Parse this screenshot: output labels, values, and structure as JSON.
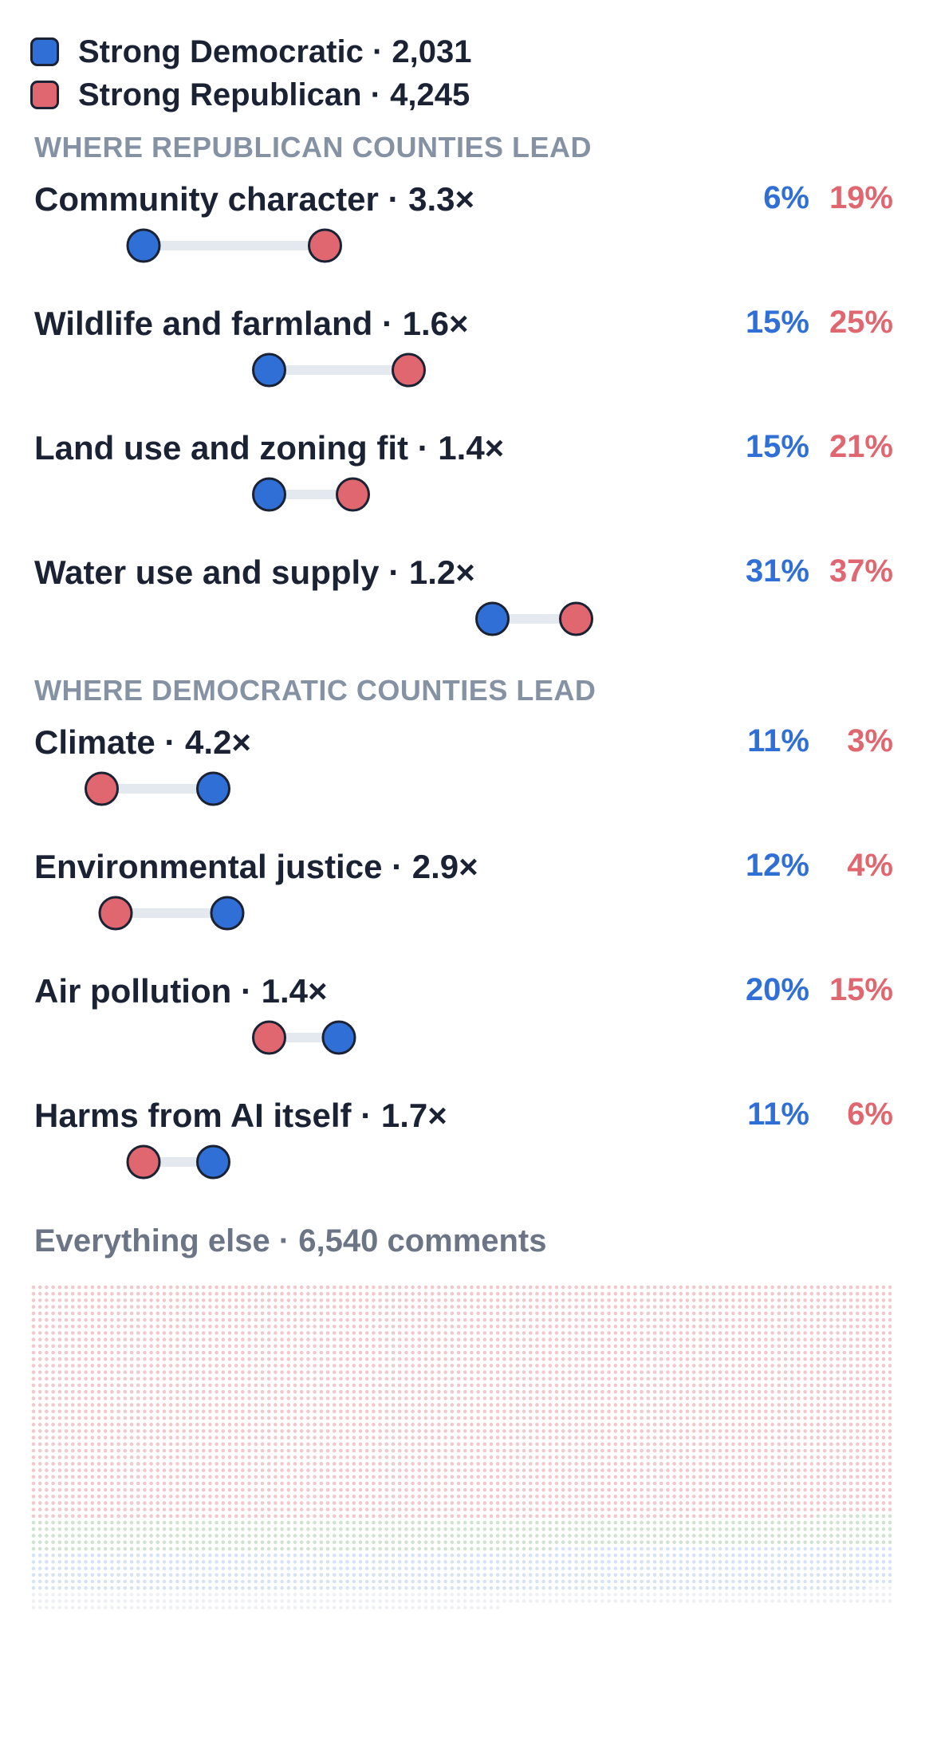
{
  "legend": {
    "items": [
      {
        "label": "Strong Democratic · 2,031",
        "color": "#2f6fd6"
      },
      {
        "label": "Strong Republican · 4,245",
        "color": "#e06670"
      }
    ]
  },
  "colors": {
    "dem": "#2f6fd6",
    "rep": "#e06670",
    "track": "#e4e8ef",
    "outline": "#1a2233"
  },
  "chart_data": [
    {
      "type": "dumbbell",
      "x_unit": "percent of comments",
      "groups": [
        {
          "title": "WHERE REPUBLICAN COUNTIES LEAD",
          "rows": [
            {
              "label": "Community character · 3.3×",
              "dem": 6,
              "rep": 19,
              "dem_label": "6%",
              "rep_label": "19%"
            },
            {
              "label": "Wildlife and farmland · 1.6×",
              "dem": 15,
              "rep": 25,
              "dem_label": "15%",
              "rep_label": "25%"
            },
            {
              "label": "Land use and zoning fit · 1.4×",
              "dem": 15,
              "rep": 21,
              "dem_label": "15%",
              "rep_label": "21%"
            },
            {
              "label": "Water use and supply · 1.2×",
              "dem": 31,
              "rep": 37,
              "dem_label": "31%",
              "rep_label": "37%"
            }
          ]
        },
        {
          "title": "WHERE DEMOCRATIC COUNTIES LEAD",
          "rows": [
            {
              "label": "Climate · 4.2×",
              "dem": 11,
              "rep": 3,
              "dem_label": "11%",
              "rep_label": "3%"
            },
            {
              "label": "Environmental justice · 2.9×",
              "dem": 12,
              "rep": 4,
              "dem_label": "12%",
              "rep_label": "4%"
            },
            {
              "label": "Air pollution · 1.4×",
              "dem": 20,
              "rep": 15,
              "dem_label": "20%",
              "rep_label": "15%"
            },
            {
              "label": "Harms from AI itself · 1.7×",
              "dem": 11,
              "rep": 6,
              "dem_label": "11%",
              "rep_label": "6%"
            }
          ]
        }
      ]
    },
    {
      "type": "waffle",
      "title": "Everything else · 6,540 comments",
      "total": 6540,
      "segments": [
        {
          "color": "#f1c9cc",
          "count": 4740
        },
        {
          "color": "#cfe3cf",
          "count": 620
        },
        {
          "color": "#d6e3f5",
          "count": 840
        },
        {
          "color": "#eef0f3",
          "count": 340
        }
      ]
    }
  ]
}
